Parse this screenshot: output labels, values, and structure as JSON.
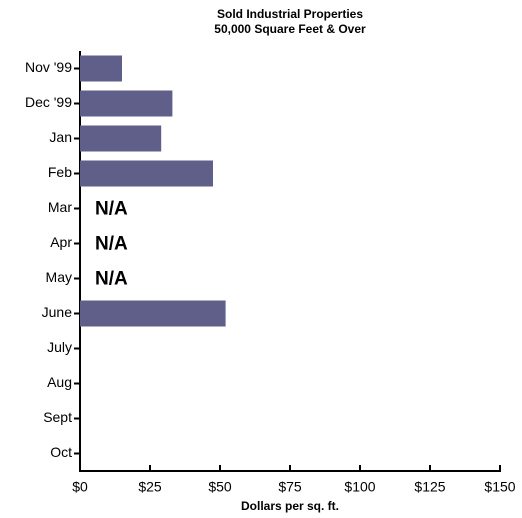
{
  "chart_data": {
    "type": "bar",
    "orientation": "horizontal",
    "title": "Sold Industrial Properties",
    "subtitle": "50,000 Square Feet & Over",
    "x_label": "Dollars per sq. ft.",
    "categories": [
      "Nov '99",
      "Dec '99",
      "Jan",
      "Feb",
      "Mar",
      "Apr",
      "May",
      "June",
      "July",
      "Aug",
      "Sept",
      "Oct"
    ],
    "values": [
      15,
      33,
      29,
      47.5,
      null,
      null,
      null,
      52,
      null,
      null,
      null,
      null
    ],
    "color": "#5f5f8a",
    "xlim": [
      0,
      150
    ],
    "xticks": [
      {
        "value": 0,
        "label": "$0"
      },
      {
        "value": 25,
        "label": "$25"
      },
      {
        "value": 50,
        "label": "$50"
      },
      {
        "value": 75,
        "label": "$75"
      },
      {
        "value": 100,
        "label": "$100"
      },
      {
        "value": 125,
        "label": "$125"
      },
      {
        "value": 150,
        "label": "$150"
      }
    ],
    "annotations": [
      {
        "category": "Mar",
        "text": "N/A"
      },
      {
        "category": "Apr",
        "text": "N/A"
      },
      {
        "category": "May",
        "text": "N/A"
      }
    ]
  }
}
